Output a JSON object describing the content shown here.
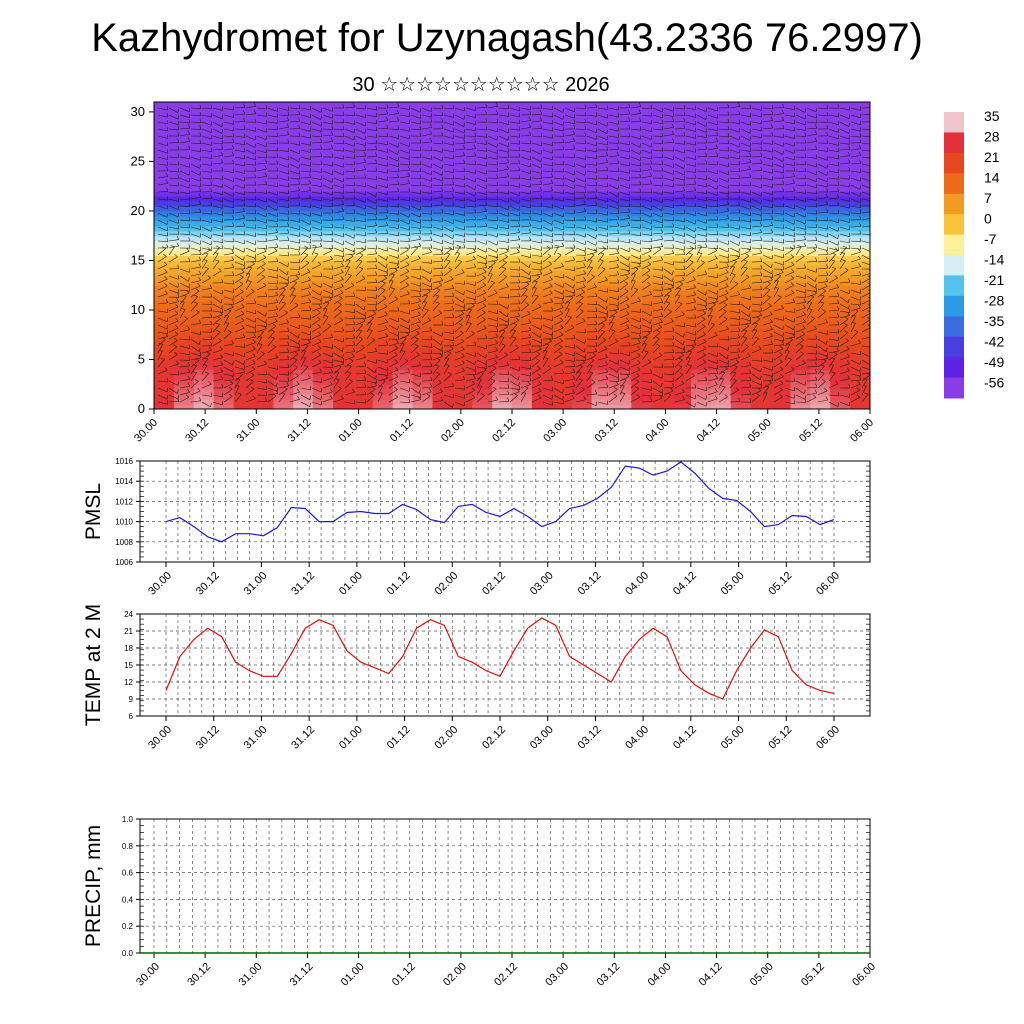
{
  "title": "Kazhydromet for Uzynagash(43.2336 76.2997)",
  "subtitle": "30 ☆☆☆☆☆☆☆☆☆☆ 2026",
  "chart_data": [
    {
      "id": "cross-section",
      "type": "heatmap",
      "description_overlay": "wind barbs",
      "ylim": [
        0,
        31
      ],
      "yticks": [
        0,
        5,
        10,
        15,
        20,
        25,
        30
      ],
      "xticks": [
        "30.00",
        "30.12",
        "31.00",
        "31.12",
        "01.00",
        "01.12",
        "02.00",
        "02.12",
        "03.00",
        "03.12",
        "04.00",
        "04.12",
        "05.00",
        "05.12",
        "06.00"
      ],
      "colorbar_labels": [
        "35",
        "28",
        "21",
        "14",
        "7",
        "0",
        "-7",
        "-14",
        "-21",
        "-28",
        "-35",
        "-42",
        "-49",
        "-56"
      ],
      "colorbar_colors": [
        "#f0c4cc",
        "#e4303a",
        "#e8461e",
        "#ee6a18",
        "#f39a22",
        "#f8c23a",
        "#fff09a",
        "#d6eef6",
        "#54c4ec",
        "#2a9ce6",
        "#3a6ce2",
        "#4a3ee0",
        "#5e22e6",
        "#8a3ce8"
      ],
      "level_temps": [
        [
          0,
          30
        ],
        [
          4,
          27
        ],
        [
          8,
          18
        ],
        [
          12,
          11
        ],
        [
          15,
          1
        ],
        [
          16,
          -8
        ],
        [
          18,
          -20
        ],
        [
          20,
          -34
        ],
        [
          21.5,
          -50
        ],
        [
          22.5,
          -60
        ],
        [
          25,
          -56
        ],
        [
          31,
          -56
        ]
      ]
    },
    {
      "id": "pmsl",
      "type": "line",
      "ylabel": "PMSL",
      "ylim": [
        1006,
        1016
      ],
      "yticks": [
        "1006",
        "1008",
        "1010",
        "1012",
        "1014",
        "1016"
      ],
      "xticks": [
        "30.00",
        "30.12",
        "31.00",
        "31.12",
        "01.00",
        "01.12",
        "02.00",
        "02.12",
        "03.00",
        "03.12",
        "04.00",
        "04.12",
        "05.00",
        "05.12",
        "06.00"
      ],
      "color": "#1b1bd6",
      "x": [
        0,
        3,
        6,
        9,
        12,
        15,
        18,
        21,
        24,
        27,
        30,
        33,
        36,
        39,
        42,
        45,
        48,
        51,
        54,
        57,
        60,
        63,
        66,
        69,
        72,
        75,
        78,
        81,
        84,
        87,
        90,
        93,
        96,
        99,
        102,
        105,
        108,
        111,
        114,
        117,
        120,
        123,
        126,
        129,
        132,
        135,
        138,
        141,
        144
      ],
      "values": [
        1010,
        1010.4,
        1009.5,
        1008.5,
        1008,
        1008.8,
        1008.8,
        1008.6,
        1009.4,
        1011.4,
        1011.3,
        1010,
        1010,
        1010.9,
        1011,
        1010.8,
        1010.8,
        1011.7,
        1011.2,
        1010.2,
        1009.9,
        1011.5,
        1011.7,
        1010.9,
        1010.5,
        1011.3,
        1010.5,
        1009.5,
        1010,
        1011.3,
        1011.6,
        1012.3,
        1013.4,
        1015.5,
        1015.3,
        1014.6,
        1015,
        1015.9,
        1014.8,
        1013.3,
        1012.3,
        1012.1,
        1011,
        1009.5,
        1009.7,
        1010.6,
        1010.5,
        1009.7,
        1010.2
      ]
    },
    {
      "id": "temp2m",
      "type": "line",
      "ylabel": "TEMP at 2 M",
      "ylim": [
        6,
        24
      ],
      "yticks": [
        "6",
        "9",
        "12",
        "15",
        "18",
        "21",
        "24"
      ],
      "xticks": [
        "30.00",
        "30.12",
        "31.00",
        "31.12",
        "01.00",
        "01.12",
        "02.00",
        "02.12",
        "03.00",
        "03.12",
        "04.00",
        "04.12",
        "05.00",
        "05.12",
        "06.00"
      ],
      "color": "#e01010",
      "x": [
        0,
        3,
        6,
        9,
        12,
        15,
        18,
        21,
        24,
        27,
        30,
        33,
        36,
        39,
        42,
        45,
        48,
        51,
        54,
        57,
        60,
        63,
        66,
        69,
        72,
        75,
        78,
        81,
        84,
        87,
        90,
        93,
        96,
        99,
        102,
        105,
        108,
        111,
        114,
        117,
        120,
        123,
        126,
        129,
        132,
        135,
        138,
        141,
        144
      ],
      "values": [
        10.5,
        16.5,
        19.5,
        21.5,
        20,
        15.5,
        14,
        13,
        13,
        17,
        21.5,
        23,
        22,
        17.5,
        15.5,
        14.5,
        13.5,
        16.5,
        21.5,
        23,
        22,
        16.5,
        15.5,
        14,
        13,
        17.5,
        21.5,
        23.3,
        22,
        16.5,
        15,
        13.5,
        12,
        16.5,
        19.5,
        21.5,
        20,
        14,
        11.5,
        10,
        9,
        14,
        18,
        21.2,
        20,
        14,
        11.5,
        10.5,
        10
      ]
    },
    {
      "id": "precip",
      "type": "line",
      "ylabel": "PRECIP, mm",
      "ylim": [
        0,
        1
      ],
      "yticks": [
        "0.0",
        "0.2",
        "0.4",
        "0.6",
        "0.8",
        "1.0"
      ],
      "xticks": [
        "30.00",
        "30.12",
        "31.00",
        "31.12",
        "01.00",
        "01.12",
        "02.00",
        "02.12",
        "03.00",
        "03.12",
        "04.00",
        "04.12",
        "05.00",
        "05.12",
        "06.00"
      ],
      "color": "#006400",
      "values": []
    }
  ]
}
